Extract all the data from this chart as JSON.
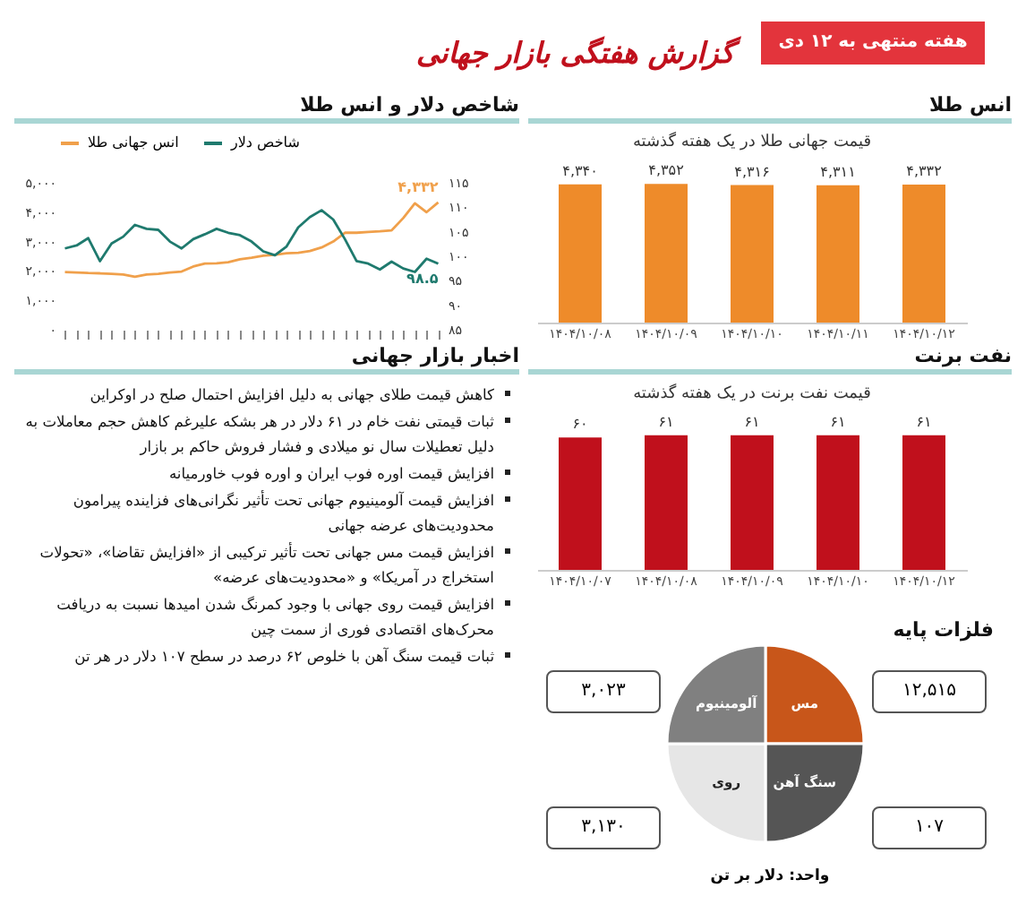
{
  "chart_data": [
    {
      "type": "other",
      "title": "گزارش هفتگی بازار جهانی",
      "subtitle": "هفته منتهی به ۱۲ دی"
    },
    {
      "type": "line",
      "title": "شاخص دلار و انس طلا",
      "categories": [
        null,
        null,
        null,
        null,
        null,
        null,
        null,
        null,
        null,
        null,
        null,
        null,
        null,
        null,
        null,
        null,
        null,
        null,
        null,
        null,
        null,
        null,
        null,
        null,
        null,
        null,
        null,
        null,
        null,
        null,
        null,
        null,
        null
      ],
      "series": [
        {
          "name": "انس جهانی طلا",
          "color": "#f0a04b",
          "values": [
            1960,
            1950,
            1930,
            1920,
            1900,
            1880,
            1800,
            1880,
            1900,
            1950,
            1980,
            2150,
            2250,
            2260,
            2300,
            2400,
            2450,
            2520,
            2550,
            2600,
            2620,
            2680,
            2800,
            3000,
            3300,
            3300,
            3330,
            3350,
            3380,
            3800,
            4300,
            4000,
            4332
          ],
          "value_labels": [
            null,
            null,
            null,
            null,
            null,
            null,
            null,
            null,
            null,
            null,
            null,
            null,
            null,
            null,
            null,
            null,
            null,
            null,
            null,
            null,
            null,
            null,
            null,
            null,
            null,
            null,
            null,
            null,
            null,
            null,
            null,
            null,
            "۴,۳۳۲"
          ]
        },
        {
          "name": "شاخص دلار",
          "color": "#1f7a6e",
          "axis": "y2",
          "values": [
            101.6,
            102.2,
            103.7,
            99.0,
            102.6,
            104.0,
            106.4,
            105.6,
            105.4,
            103.0,
            101.6,
            103.5,
            104.5,
            105.6,
            104.8,
            104.3,
            103.0,
            101.0,
            100.2,
            102.0,
            105.9,
            108.0,
            109.4,
            107.5,
            103.5,
            99.0,
            98.5,
            97.3,
            98.9,
            97.5,
            96.8,
            99.5,
            98.5
          ],
          "value_labels": [
            null,
            null,
            null,
            null,
            null,
            null,
            null,
            null,
            null,
            null,
            null,
            null,
            null,
            null,
            null,
            null,
            null,
            null,
            null,
            null,
            null,
            null,
            null,
            null,
            null,
            null,
            null,
            null,
            null,
            null,
            null,
            null,
            "۹۸.۵"
          ]
        }
      ],
      "ylim": [
        0,
        5000
      ],
      "yticks": [
        {
          "value": 0,
          "label": "۰"
        },
        {
          "value": 1000,
          "label": "۱,۰۰۰"
        },
        {
          "value": 2000,
          "label": "۲,۰۰۰"
        },
        {
          "value": 3000,
          "label": "۳,۰۰۰"
        },
        {
          "value": 4000,
          "label": "۴,۰۰۰"
        },
        {
          "value": 5000,
          "label": "۵,۰۰۰"
        }
      ],
      "y2lim": [
        85,
        115
      ],
      "y2ticks": [
        {
          "value": 85,
          "label": "۸۵"
        },
        {
          "value": 90,
          "label": "۹۰"
        },
        {
          "value": 95,
          "label": "۹۵"
        },
        {
          "value": 100,
          "label": "۱۰۰"
        },
        {
          "value": 105,
          "label": "۱۰۵"
        },
        {
          "value": 110,
          "label": "۱۱۰"
        },
        {
          "value": 115,
          "label": "۱۱۵"
        }
      ],
      "legend": "top"
    },
    {
      "type": "bar",
      "title": "انس طلا",
      "subtitle": "قیمت جهانی طلا در یک هفته گذشته",
      "categories": [
        "۱۴۰۴/۱۰/۰۸",
        "۱۴۰۴/۱۰/۰۹",
        "۱۴۰۴/۱۰/۱۰",
        "۱۴۰۴/۱۰/۱۱",
        "۱۴۰۴/۱۰/۱۲"
      ],
      "values": [
        4340,
        4352,
        4316,
        4311,
        4332
      ],
      "color": "#ee8b2a",
      "value_labels": [
        "۴,۳۴۰",
        "۴,۳۵۲",
        "۴,۳۱۶",
        "۴,۳۱۱",
        "۴,۳۳۲"
      ]
    },
    {
      "type": "bar",
      "title": "نفت برنت",
      "subtitle": "قیمت نفت برنت در یک هفته گذشته",
      "categories": [
        "۱۴۰۴/۱۰/۰۷",
        "۱۴۰۴/۱۰/۰۸",
        "۱۴۰۴/۱۰/۰۹",
        "۱۴۰۴/۱۰/۱۰",
        "۱۴۰۴/۱۰/۱۲"
      ],
      "values": [
        60,
        61,
        61,
        61,
        61
      ],
      "color": "#c0101c",
      "value_labels": [
        "۶۰",
        "۶۱",
        "۶۱",
        "۶۱",
        "۶۱"
      ]
    },
    {
      "type": "other",
      "title": "اخبار بازار جهانی",
      "annotations": [
        "کاهش قیمت طلای جهانی به دلیل افزایش احتمال صلح در اوکراین",
        "ثبات قیمتی نفت خام در ۶۱ دلار در هر بشکه علیرغم کاهش حجم معاملات به دلیل تعطیلات سال نو میلادی و فشار فروش حاکم بر بازار",
        "افزایش قیمت اوره فوب ایران و اوره فوب خاورمیانه",
        "افزایش قیمت آلومینیوم جهانی تحت تأثیر نگرانی‌های فزاینده پیرامون محدودیت‌های عرضه جهانی",
        "افزایش قیمت مس جهانی تحت تأثیر ترکیبی از «افزایش تقاضا»، «تحولات استخراج در آمریکا» و «محدودیت‌های عرضه»",
        "افزایش قیمت روی جهانی با وجود کمرنگ شدن امیدها نسبت به دریافت محرک‌های اقتصادی فوری از سمت چین",
        "ثبات قیمت سنگ آهن با خلوص ۶۲ درصد در سطح ۱۰۷ دلار در هر تن"
      ]
    },
    {
      "type": "pie",
      "title": "فلزات پایه",
      "categories": [
        "مس",
        "سنگ آهن",
        "روی",
        "آلومینیوم"
      ],
      "values": [
        25,
        25,
        25,
        25
      ],
      "colors": [
        "#c8561a",
        "#555555",
        "#e6e6e6",
        "#808080"
      ],
      "annotations": [
        "۱۲,۵۱۵",
        "۱۰۷",
        "۳,۱۳۰",
        "۳,۰۲۳",
        "واحد: دلار بر تن"
      ]
    }
  ]
}
